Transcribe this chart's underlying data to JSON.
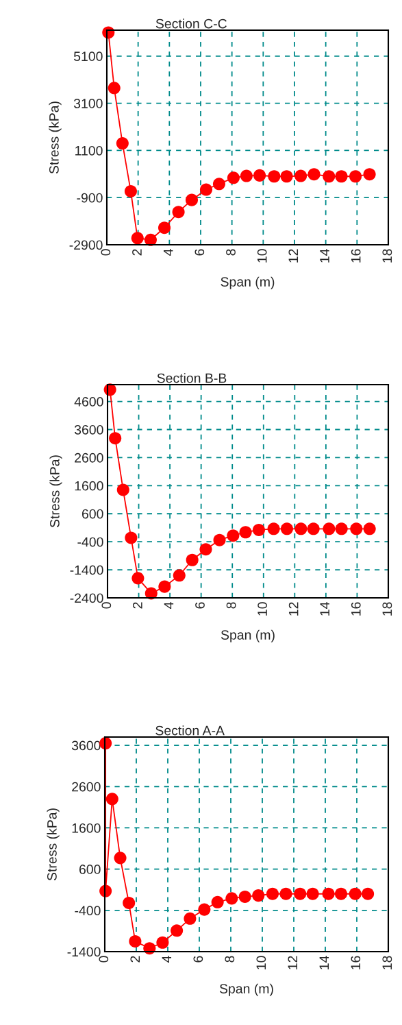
{
  "chart_data": [
    {
      "type": "line",
      "title": "Section C-C",
      "xlabel": "Span (m)",
      "ylabel": "Stress (kPa)",
      "marker": "circle",
      "line_style": "solid",
      "grid": true,
      "legend": false,
      "xlim": [
        0,
        18
      ],
      "xticks": [
        0,
        2,
        4,
        6,
        8,
        10,
        12,
        14,
        16,
        18
      ],
      "ylim": [
        -2900,
        6200
      ],
      "yticks": [
        -2900,
        -900,
        1100,
        3100,
        5100
      ],
      "series": [
        {
          "color": "#ff0000",
          "x": [
            0.1,
            0.47,
            1.0,
            1.53,
            1.96,
            2.8,
            3.68,
            4.58,
            5.43,
            6.35,
            7.18,
            8.1,
            8.93,
            9.77,
            10.7,
            11.5,
            12.4,
            13.25,
            14.2,
            15.0,
            15.9,
            16.8
          ],
          "values": [
            6100,
            3750,
            1400,
            -630,
            -2620,
            -2690,
            -2180,
            -1510,
            -1000,
            -560,
            -320,
            -60,
            20,
            40,
            0,
            0,
            20,
            90,
            0,
            0,
            0,
            90
          ]
        }
      ]
    },
    {
      "type": "line",
      "title": "Section B-B",
      "xlabel": "Span (m)",
      "ylabel": "Stress (kPa)",
      "marker": "circle",
      "line_style": "solid",
      "grid": true,
      "legend": false,
      "xlim": [
        0,
        18
      ],
      "xticks": [
        0,
        2,
        4,
        6,
        8,
        10,
        12,
        14,
        16,
        18
      ],
      "ylim": [
        -2400,
        5200
      ],
      "yticks": [
        -2400,
        -1400,
        -400,
        600,
        1600,
        2600,
        3600,
        4600
      ],
      "series": [
        {
          "color": "#ff0000",
          "x": [
            0.16,
            0.49,
            1.0,
            1.51,
            1.95,
            2.8,
            3.66,
            4.6,
            5.43,
            6.3,
            7.18,
            8.05,
            8.85,
            9.7,
            10.65,
            11.5,
            12.4,
            13.2,
            14.2,
            15.0,
            15.95,
            16.8
          ],
          "values": [
            5020,
            3290,
            1450,
            -260,
            -1700,
            -2240,
            -2000,
            -1600,
            -1050,
            -670,
            -340,
            -180,
            -60,
            20,
            60,
            60,
            60,
            60,
            60,
            60,
            60,
            60
          ]
        }
      ]
    },
    {
      "type": "line",
      "title": "Section A-A",
      "xlabel": "Span (m)",
      "ylabel": "Stress (kPa)",
      "marker": "circle",
      "line_style": "solid",
      "grid": true,
      "legend": false,
      "xlim": [
        0,
        18
      ],
      "xticks": [
        0,
        2,
        4,
        6,
        8,
        10,
        12,
        14,
        16,
        18
      ],
      "ylim": [
        -1400,
        3800
      ],
      "yticks": [
        -1400,
        -400,
        600,
        1600,
        2600,
        3600
      ],
      "series": [
        {
          "color": "#ff0000",
          "x": [
            0.05,
            0.05,
            0.47,
            0.98,
            1.53,
            1.93,
            2.84,
            3.67,
            4.57,
            5.41,
            6.32,
            7.16,
            8.06,
            8.9,
            9.75,
            10.65,
            11.5,
            12.4,
            13.2,
            14.2,
            15.0,
            15.9,
            16.7
          ],
          "values": [
            3650,
            70,
            2300,
            870,
            -220,
            -1150,
            -1320,
            -1180,
            -890,
            -600,
            -380,
            -200,
            -110,
            -70,
            -40,
            0,
            0,
            0,
            0,
            0,
            0,
            0,
            0
          ]
        }
      ]
    }
  ]
}
